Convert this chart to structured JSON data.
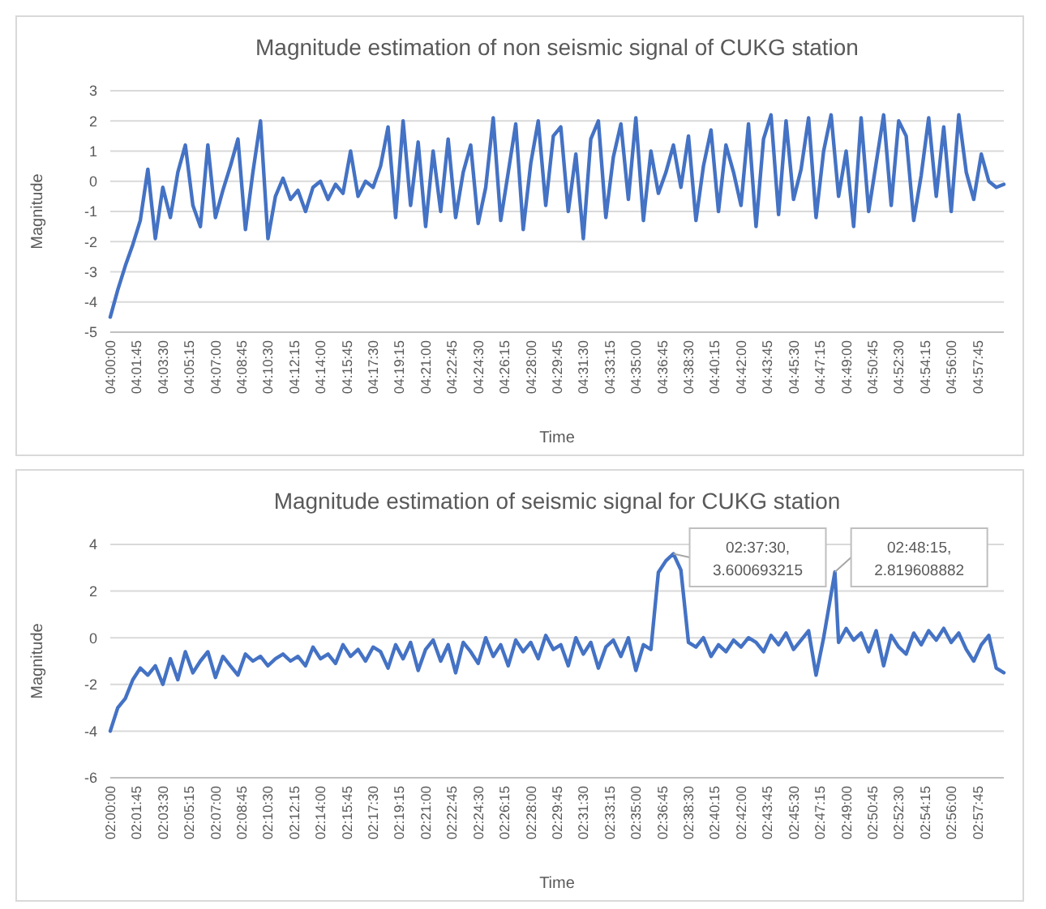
{
  "chart_data": [
    {
      "type": "line",
      "title": "Magnitude estimation of non seismic signal of CUKG station",
      "xlabel": "Time",
      "ylabel": "Magnitude",
      "grid": "y",
      "marker": "none",
      "line_style": "solid",
      "xlim": [
        4,
        4.9917
      ],
      "ylim": [
        -5,
        3
      ],
      "yticks": [
        -5,
        -4,
        -3,
        -2,
        -1,
        0,
        1,
        2,
        3
      ],
      "xticks": [
        {
          "value": 4,
          "label": "04:00:00"
        },
        {
          "value": 4.0292,
          "label": "04:01:45"
        },
        {
          "value": 4.0583,
          "label": "04:03:30"
        },
        {
          "value": 4.0875,
          "label": "04:05:15"
        },
        {
          "value": 4.1167,
          "label": "04:07:00"
        },
        {
          "value": 4.1458,
          "label": "04:08:45"
        },
        {
          "value": 4.175,
          "label": "04:10:30"
        },
        {
          "value": 4.2042,
          "label": "04:12:15"
        },
        {
          "value": 4.2333,
          "label": "04:14:00"
        },
        {
          "value": 4.2625,
          "label": "04:15:45"
        },
        {
          "value": 4.2917,
          "label": "04:17:30"
        },
        {
          "value": 4.3208,
          "label": "04:19:15"
        },
        {
          "value": 4.35,
          "label": "04:21:00"
        },
        {
          "value": 4.3792,
          "label": "04:22:45"
        },
        {
          "value": 4.4083,
          "label": "04:24:30"
        },
        {
          "value": 4.4375,
          "label": "04:26:15"
        },
        {
          "value": 4.4667,
          "label": "04:28:00"
        },
        {
          "value": 4.4958,
          "label": "04:29:45"
        },
        {
          "value": 4.525,
          "label": "04:31:30"
        },
        {
          "value": 4.5542,
          "label": "04:33:15"
        },
        {
          "value": 4.5833,
          "label": "04:35:00"
        },
        {
          "value": 4.6125,
          "label": "04:36:45"
        },
        {
          "value": 4.6417,
          "label": "04:38:30"
        },
        {
          "value": 4.6708,
          "label": "04:40:15"
        },
        {
          "value": 4.7,
          "label": "04:42:00"
        },
        {
          "value": 4.7292,
          "label": "04:43:45"
        },
        {
          "value": 4.7583,
          "label": "04:45:30"
        },
        {
          "value": 4.7875,
          "label": "04:47:15"
        },
        {
          "value": 4.8167,
          "label": "04:49:00"
        },
        {
          "value": 4.8458,
          "label": "04:50:45"
        },
        {
          "value": 4.875,
          "label": "04:52:30"
        },
        {
          "value": 4.9042,
          "label": "04:54:15"
        },
        {
          "value": 4.9333,
          "label": "04:56:00"
        },
        {
          "value": 4.9625,
          "label": "04:57:45"
        }
      ],
      "series": [
        {
          "color": "#4472c4",
          "x": [
            4,
            4.0083,
            4.0167,
            4.025,
            4.0333,
            4.0417,
            4.05,
            4.0583,
            4.0667,
            4.075,
            4.0833,
            4.0917,
            4.1,
            4.1083,
            4.1167,
            4.125,
            4.1333,
            4.1417,
            4.15,
            4.1583,
            4.1667,
            4.175,
            4.1833,
            4.1917,
            4.2,
            4.2083,
            4.2167,
            4.225,
            4.2333,
            4.2417,
            4.25,
            4.2583,
            4.2667,
            4.275,
            4.2833,
            4.2917,
            4.3,
            4.3083,
            4.3167,
            4.325,
            4.3333,
            4.3417,
            4.35,
            4.3583,
            4.3667,
            4.375,
            4.3833,
            4.3917,
            4.4,
            4.4083,
            4.4167,
            4.425,
            4.4333,
            4.4417,
            4.45,
            4.4583,
            4.4667,
            4.475,
            4.4833,
            4.4917,
            4.5,
            4.5083,
            4.5167,
            4.525,
            4.5333,
            4.5417,
            4.55,
            4.5583,
            4.5667,
            4.575,
            4.5833,
            4.5917,
            4.6,
            4.6083,
            4.6167,
            4.625,
            4.6333,
            4.6417,
            4.65,
            4.6583,
            4.6667,
            4.675,
            4.6833,
            4.6917,
            4.7,
            4.7083,
            4.7167,
            4.725,
            4.7333,
            4.7417,
            4.75,
            4.7583,
            4.7667,
            4.775,
            4.7833,
            4.7917,
            4.8,
            4.8083,
            4.8167,
            4.825,
            4.8333,
            4.8417,
            4.85,
            4.8583,
            4.8667,
            4.875,
            4.8833,
            4.8917,
            4.9,
            4.9083,
            4.9167,
            4.925,
            4.9333,
            4.9417,
            4.95,
            4.9583,
            4.9667,
            4.975,
            4.9833,
            4.9917
          ],
          "values": [
            -4.5,
            -3.6,
            -2.8,
            -2.1,
            -1.3,
            0.4,
            -1.9,
            -0.2,
            -1.2,
            0.3,
            1.2,
            -0.8,
            -1.5,
            1.2,
            -1.2,
            -0.3,
            0.5,
            1.4,
            -1.6,
            0.3,
            2.0,
            -1.9,
            -0.5,
            0.1,
            -0.6,
            -0.3,
            -1.0,
            -0.2,
            0.0,
            -0.6,
            -0.1,
            -0.4,
            1.0,
            -0.5,
            0.0,
            -0.2,
            0.5,
            1.8,
            -1.2,
            2.0,
            -0.8,
            1.3,
            -1.5,
            1.0,
            -1.0,
            1.4,
            -1.2,
            0.3,
            1.2,
            -1.4,
            -0.2,
            2.1,
            -1.3,
            0.3,
            1.9,
            -1.6,
            0.6,
            2.0,
            -0.8,
            1.5,
            1.8,
            -1.0,
            0.9,
            -1.9,
            1.4,
            2.0,
            -1.2,
            0.8,
            1.9,
            -0.6,
            2.1,
            -1.3,
            1.0,
            -0.4,
            0.3,
            1.2,
            -0.2,
            1.5,
            -1.3,
            0.5,
            1.7,
            -1.0,
            1.2,
            0.3,
            -0.8,
            1.9,
            -1.5,
            1.4,
            2.2,
            -1.1,
            2.0,
            -0.6,
            0.4,
            2.1,
            -1.2,
            1.0,
            2.2,
            -0.5,
            1.0,
            -1.5,
            2.1,
            -1.0,
            0.6,
            2.2,
            -0.8,
            2.0,
            1.5,
            -1.3,
            0.2,
            2.1,
            -0.5,
            1.8,
            -1.0,
            2.2,
            0.3,
            -0.6,
            0.9,
            0.0,
            -0.2,
            -0.1
          ]
        }
      ]
    },
    {
      "type": "line",
      "title": "Magnitude estimation of seismic signal for CUKG station",
      "xlabel": "Time",
      "ylabel": "Magnitude",
      "grid": "y",
      "marker": "none",
      "line_style": "solid",
      "xlim": [
        2,
        2.9917
      ],
      "ylim": [
        -6,
        4
      ],
      "yticks": [
        -6,
        -4,
        -2,
        0,
        2,
        4
      ],
      "xticks": [
        {
          "value": 2,
          "label": "02:00:00"
        },
        {
          "value": 2.0292,
          "label": "02:01:45"
        },
        {
          "value": 2.0583,
          "label": "02:03:30"
        },
        {
          "value": 2.0875,
          "label": "02:05:15"
        },
        {
          "value": 2.1167,
          "label": "02:07:00"
        },
        {
          "value": 2.1458,
          "label": "02:08:45"
        },
        {
          "value": 2.175,
          "label": "02:10:30"
        },
        {
          "value": 2.2042,
          "label": "02:12:15"
        },
        {
          "value": 2.2333,
          "label": "02:14:00"
        },
        {
          "value": 2.2625,
          "label": "02:15:45"
        },
        {
          "value": 2.2917,
          "label": "02:17:30"
        },
        {
          "value": 2.3208,
          "label": "02:19:15"
        },
        {
          "value": 2.35,
          "label": "02:21:00"
        },
        {
          "value": 2.3792,
          "label": "02:22:45"
        },
        {
          "value": 2.4083,
          "label": "02:24:30"
        },
        {
          "value": 2.4375,
          "label": "02:26:15"
        },
        {
          "value": 2.4667,
          "label": "02:28:00"
        },
        {
          "value": 2.4958,
          "label": "02:29:45"
        },
        {
          "value": 2.525,
          "label": "02:31:30"
        },
        {
          "value": 2.5542,
          "label": "02:33:15"
        },
        {
          "value": 2.5833,
          "label": "02:35:00"
        },
        {
          "value": 2.6125,
          "label": "02:36:45"
        },
        {
          "value": 2.6417,
          "label": "02:38:30"
        },
        {
          "value": 2.6708,
          "label": "02:40:15"
        },
        {
          "value": 2.7,
          "label": "02:42:00"
        },
        {
          "value": 2.7292,
          "label": "02:43:45"
        },
        {
          "value": 2.7583,
          "label": "02:45:30"
        },
        {
          "value": 2.7875,
          "label": "02:47:15"
        },
        {
          "value": 2.8167,
          "label": "02:49:00"
        },
        {
          "value": 2.8458,
          "label": "02:50:45"
        },
        {
          "value": 2.875,
          "label": "02:52:30"
        },
        {
          "value": 2.9042,
          "label": "02:54:15"
        },
        {
          "value": 2.9333,
          "label": "02:56:00"
        },
        {
          "value": 2.9625,
          "label": "02:57:45"
        }
      ],
      "annotations": [
        {
          "text": "02:37:30, 3.600693215",
          "x": 2.625,
          "y": 3.600693215
        },
        {
          "text": "02:48:15, 2.819608882",
          "x": 2.8042,
          "y": 2.819608882
        }
      ],
      "series": [
        {
          "color": "#4472c4",
          "x": [
            2,
            2.0083,
            2.0167,
            2.025,
            2.0333,
            2.0417,
            2.05,
            2.0583,
            2.0667,
            2.075,
            2.0833,
            2.0917,
            2.1,
            2.1083,
            2.1167,
            2.125,
            2.1333,
            2.1417,
            2.15,
            2.1583,
            2.1667,
            2.175,
            2.1833,
            2.1917,
            2.2,
            2.2083,
            2.2167,
            2.225,
            2.2333,
            2.2417,
            2.25,
            2.2583,
            2.2667,
            2.275,
            2.2833,
            2.2917,
            2.3,
            2.3083,
            2.3167,
            2.325,
            2.3333,
            2.3417,
            2.35,
            2.3583,
            2.3667,
            2.375,
            2.3833,
            2.3917,
            2.4,
            2.4083,
            2.4167,
            2.425,
            2.4333,
            2.4417,
            2.45,
            2.4583,
            2.4667,
            2.475,
            2.4833,
            2.4917,
            2.5,
            2.5083,
            2.5167,
            2.525,
            2.5333,
            2.5417,
            2.55,
            2.5583,
            2.5667,
            2.575,
            2.5833,
            2.5917,
            2.6,
            2.6083,
            2.6167,
            2.625,
            2.6333,
            2.6417,
            2.65,
            2.6583,
            2.6667,
            2.675,
            2.6833,
            2.6917,
            2.7,
            2.7083,
            2.7167,
            2.725,
            2.7333,
            2.7417,
            2.75,
            2.7583,
            2.7667,
            2.775,
            2.7833,
            2.7917,
            2.8042,
            2.8083,
            2.8167,
            2.825,
            2.8333,
            2.8417,
            2.85,
            2.8583,
            2.8667,
            2.875,
            2.8833,
            2.8917,
            2.9,
            2.9083,
            2.9167,
            2.925,
            2.9333,
            2.9417,
            2.95,
            2.9583,
            2.9667,
            2.975,
            2.9833,
            2.9917
          ],
          "values": [
            -4.0,
            -3.0,
            -2.6,
            -1.8,
            -1.3,
            -1.6,
            -1.2,
            -2.0,
            -0.9,
            -1.8,
            -0.6,
            -1.5,
            -1.0,
            -0.6,
            -1.7,
            -0.8,
            -1.2,
            -1.6,
            -0.7,
            -1.0,
            -0.8,
            -1.2,
            -0.9,
            -0.7,
            -1.0,
            -0.8,
            -1.2,
            -0.4,
            -0.9,
            -0.7,
            -1.1,
            -0.3,
            -0.8,
            -0.5,
            -1.0,
            -0.4,
            -0.6,
            -1.3,
            -0.3,
            -0.9,
            -0.2,
            -1.4,
            -0.5,
            -0.1,
            -1.0,
            -0.3,
            -1.5,
            -0.2,
            -0.6,
            -1.1,
            0.0,
            -0.8,
            -0.3,
            -1.2,
            -0.1,
            -0.6,
            -0.2,
            -0.9,
            0.1,
            -0.5,
            -0.3,
            -1.2,
            0.0,
            -0.7,
            -0.2,
            -1.3,
            -0.4,
            -0.1,
            -0.8,
            0.0,
            -1.4,
            -0.3,
            -0.5,
            2.8,
            3.3,
            3.600693215,
            2.9,
            -0.2,
            -0.4,
            0.0,
            -0.8,
            -0.3,
            -0.6,
            -0.1,
            -0.4,
            0.0,
            -0.2,
            -0.6,
            0.1,
            -0.3,
            0.2,
            -0.5,
            -0.1,
            0.3,
            -1.6,
            0.0,
            2.819608882,
            -0.2,
            0.4,
            -0.1,
            0.2,
            -0.6,
            0.3,
            -1.2,
            0.1,
            -0.4,
            -0.7,
            0.2,
            -0.3,
            0.3,
            -0.1,
            0.4,
            -0.2,
            0.2,
            -0.5,
            -1.0,
            -0.3,
            0.1,
            -1.3,
            -1.5
          ]
        }
      ]
    }
  ]
}
